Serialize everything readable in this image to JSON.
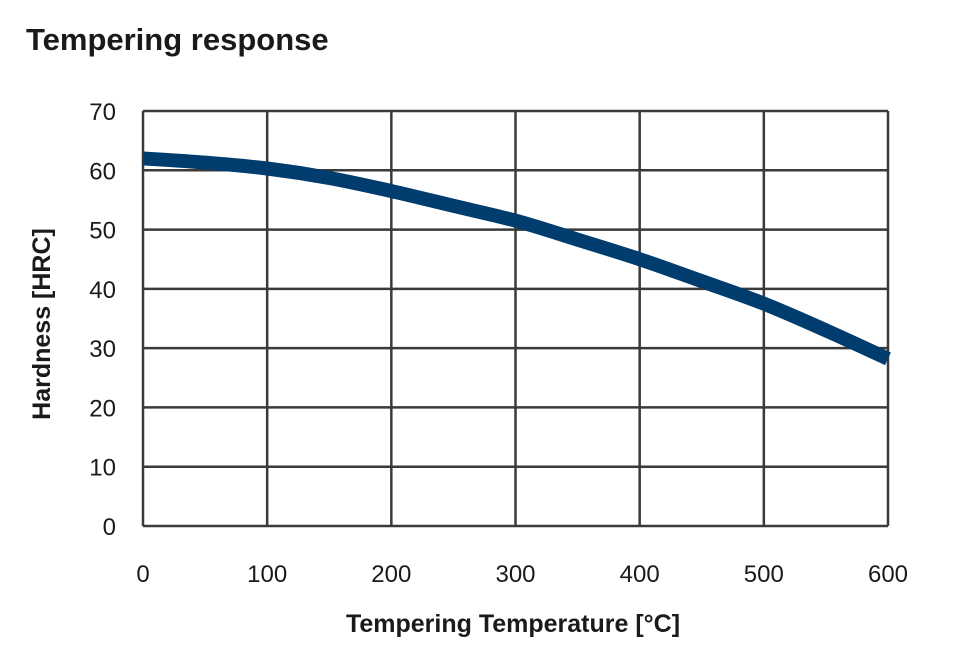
{
  "chart_data": {
    "type": "line",
    "title": "Tempering response",
    "xlabel": "Tempering Temperature [°C]",
    "ylabel": "Hardness [HRC]",
    "xlim": [
      0,
      600
    ],
    "ylim": [
      0,
      70
    ],
    "xticks": [
      0,
      100,
      200,
      300,
      400,
      500,
      600
    ],
    "yticks": [
      0,
      10,
      20,
      30,
      40,
      50,
      60,
      70
    ],
    "grid": true,
    "series": [
      {
        "x": [
          0,
          50,
          100,
          150,
          200,
          250,
          300,
          350,
          400,
          450,
          500,
          550,
          600
        ],
        "y": [
          62,
          61.3,
          60.3,
          58.7,
          56.5,
          54,
          51.5,
          48.3,
          45,
          41.3,
          37.5,
          33,
          28.2
        ]
      }
    ],
    "colors": {
      "line": "#003c6e",
      "grid": "#3a3a3a"
    }
  }
}
